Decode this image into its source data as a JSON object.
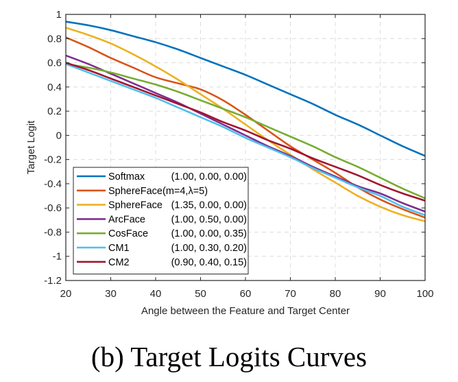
{
  "caption": "(b)  Target Logits Curves",
  "chart_data": {
    "type": "line",
    "title": "",
    "xlabel": "Angle between the Feature and Target Center",
    "ylabel": "Target Logit",
    "xlim": [
      20,
      100
    ],
    "ylim": [
      -1.2,
      1
    ],
    "xticks": [
      20,
      30,
      40,
      50,
      60,
      70,
      80,
      90,
      100
    ],
    "yticks": [
      -1.2,
      -1,
      -0.8,
      -0.6,
      -0.4,
      -0.2,
      0,
      0.2,
      0.4,
      0.6,
      0.8,
      1
    ],
    "xtick_labels": [
      "20",
      "30",
      "40",
      "50",
      "60",
      "70",
      "80",
      "90",
      "100"
    ],
    "ytick_labels": [
      "-1.2",
      "-1",
      "-0.8",
      "-0.6",
      "-0.4",
      "-0.2",
      "0",
      "0.2",
      "0.4",
      "0.6",
      "0.8",
      "1"
    ],
    "grid": true,
    "legend_position": "bottom-left",
    "x": [
      20,
      25,
      30,
      35,
      40,
      45,
      50,
      55,
      60,
      65,
      70,
      75,
      80,
      85,
      90,
      95,
      100
    ],
    "series": [
      {
        "name": "Softmax",
        "params": "(1.00, 0.00, 0.00)",
        "color": "#0072BD",
        "values": [
          0.94,
          0.91,
          0.87,
          0.82,
          0.77,
          0.71,
          0.64,
          0.57,
          0.5,
          0.42,
          0.34,
          0.26,
          0.17,
          0.09,
          0.0,
          -0.09,
          -0.17
        ]
      },
      {
        "name": "SphereFace(m=4,λ=5)",
        "params": "",
        "color": "#D95319",
        "values": [
          0.81,
          0.73,
          0.64,
          0.56,
          0.48,
          0.43,
          0.38,
          0.29,
          0.17,
          0.04,
          -0.09,
          -0.2,
          -0.31,
          -0.43,
          -0.53,
          -0.61,
          -0.68
        ]
      },
      {
        "name": "SphereFace",
        "params": "(1.35, 0.00, 0.00)",
        "color": "#EDB120",
        "values": [
          0.89,
          0.83,
          0.76,
          0.67,
          0.57,
          0.46,
          0.34,
          0.22,
          0.09,
          -0.04,
          -0.16,
          -0.28,
          -0.39,
          -0.5,
          -0.59,
          -0.66,
          -0.71
        ]
      },
      {
        "name": "ArcFace",
        "params": "(1.00, 0.50, 0.00)",
        "color": "#7E2F8E",
        "values": [
          0.66,
          0.59,
          0.51,
          0.43,
          0.35,
          0.27,
          0.18,
          0.09,
          0.0,
          -0.09,
          -0.17,
          -0.26,
          -0.34,
          -0.42,
          -0.48,
          -0.56,
          -0.63
        ]
      },
      {
        "name": "CosFace",
        "params": "(1.00, 0.00, 0.35)",
        "color": "#77AC30",
        "values": [
          0.59,
          0.56,
          0.52,
          0.47,
          0.42,
          0.36,
          0.29,
          0.22,
          0.15,
          0.07,
          -0.01,
          -0.09,
          -0.18,
          -0.26,
          -0.35,
          -0.44,
          -0.52
        ]
      },
      {
        "name": "CM1",
        "params": "(1.00, 0.30, 0.20)",
        "color": "#4DBEEE",
        "values": [
          0.59,
          0.52,
          0.45,
          0.38,
          0.31,
          0.23,
          0.15,
          0.07,
          -0.02,
          -0.1,
          -0.18,
          -0.27,
          -0.35,
          -0.43,
          -0.5,
          -0.59,
          -0.66
        ]
      },
      {
        "name": "CM2",
        "params": "(0.90, 0.40, 0.15)",
        "color": "#A2142F",
        "values": [
          0.6,
          0.54,
          0.47,
          0.4,
          0.33,
          0.26,
          0.19,
          0.11,
          0.04,
          -0.04,
          -0.11,
          -0.19,
          -0.26,
          -0.33,
          -0.41,
          -0.48,
          -0.54
        ]
      }
    ]
  }
}
